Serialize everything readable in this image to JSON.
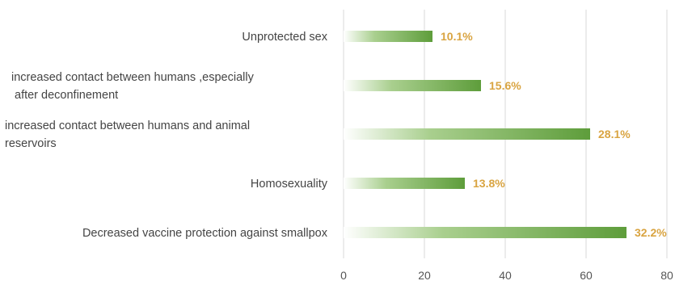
{
  "chart_data": {
    "type": "bar",
    "orientation": "horizontal",
    "categories": [
      [
        "Unprotected sex"
      ],
      [
        "increased contact between humans ,especially",
        "after deconfinement"
      ],
      [
        "increased contact between humans and animal",
        "reservoirs"
      ],
      [
        "Homosexuality"
      ],
      [
        "Decreased vaccine protection against smallpox"
      ]
    ],
    "values": [
      22,
      34,
      61,
      30,
      70
    ],
    "data_labels": [
      "10.1%",
      "15.6%",
      "28.1%",
      "13.8%",
      "32.2%"
    ],
    "xlim": [
      0,
      80
    ],
    "x_ticks": [
      "0",
      "20",
      "40",
      "60",
      "80"
    ],
    "grid": "vertical",
    "colors": {
      "bar_start": "#ffffff",
      "bar_end": "#5e9d3b",
      "data_label": "#d9a441",
      "grid": "#d9d9d9",
      "text": "#444444"
    }
  }
}
